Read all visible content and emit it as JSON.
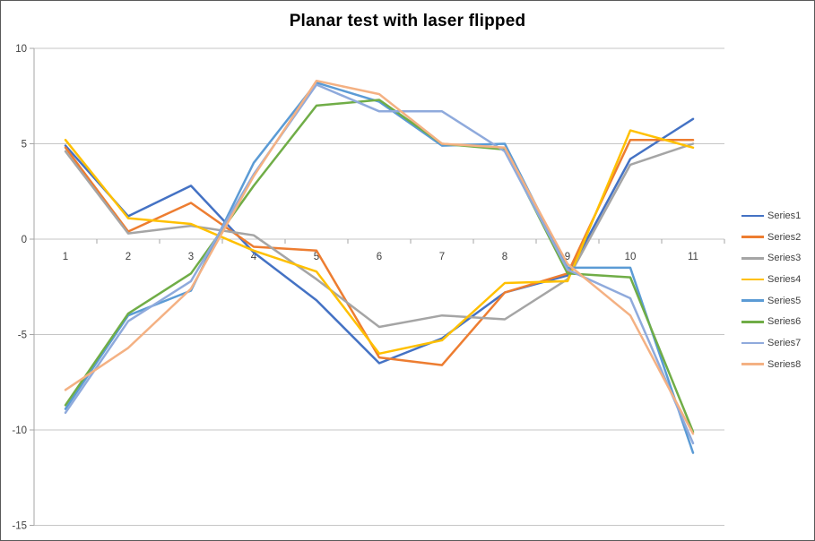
{
  "chart_data": {
    "type": "line",
    "title": "Planar test with laser flipped",
    "categories": [
      "1",
      "2",
      "3",
      "4",
      "5",
      "6",
      "7",
      "8",
      "9",
      "10",
      "11"
    ],
    "series": [
      {
        "name": "Series1",
        "color": "#4472C4",
        "values": [
          4.9,
          1.2,
          2.8,
          -0.7,
          -3.2,
          -6.5,
          -5.2,
          -2.8,
          -1.9,
          4.2,
          6.3
        ]
      },
      {
        "name": "Series2",
        "color": "#ED7D31",
        "values": [
          4.8,
          0.4,
          1.9,
          -0.4,
          -0.6,
          -6.2,
          -6.6,
          -2.8,
          -1.8,
          5.2,
          5.2
        ]
      },
      {
        "name": "Series3",
        "color": "#A5A5A5",
        "values": [
          4.6,
          0.3,
          0.7,
          0.2,
          -2.1,
          -4.6,
          -4.0,
          -4.2,
          -2.1,
          3.9,
          5.0
        ]
      },
      {
        "name": "Series4",
        "color": "#FFC000",
        "values": [
          5.2,
          1.1,
          0.8,
          -0.6,
          -1.7,
          -6.0,
          -5.3,
          -2.3,
          -2.2,
          5.7,
          4.8
        ]
      },
      {
        "name": "Series5",
        "color": "#5B9BD5",
        "values": [
          -8.9,
          -4.0,
          -2.7,
          4.0,
          8.2,
          7.2,
          4.9,
          5.0,
          -1.5,
          -1.5,
          -11.2
        ]
      },
      {
        "name": "Series6",
        "color": "#70AD47",
        "values": [
          -8.7,
          -3.9,
          -1.8,
          2.8,
          7.0,
          7.3,
          5.0,
          4.7,
          -1.8,
          -2.0,
          -10.1
        ]
      },
      {
        "name": "Series7",
        "color": "#8FAADC",
        "values": [
          -9.1,
          -4.3,
          -2.2,
          3.4,
          8.1,
          6.7,
          6.7,
          4.6,
          -1.6,
          -3.1,
          -10.7
        ]
      },
      {
        "name": "Series8",
        "color": "#F4B183",
        "values": [
          -7.9,
          -5.7,
          -2.6,
          3.3,
          8.3,
          7.6,
          5.0,
          4.8,
          -1.3,
          -4.0,
          -10.2
        ]
      }
    ],
    "y_axis": {
      "ticks": [
        10,
        5,
        0,
        -5,
        -10,
        -15
      ],
      "min": -15,
      "max": 10
    },
    "x_axis": {
      "labels": [
        "1",
        "2",
        "3",
        "4",
        "5",
        "6",
        "7",
        "8",
        "9",
        "10",
        "11"
      ]
    },
    "legend": {
      "position": "right",
      "entries": [
        "Series1",
        "Series2",
        "Series3",
        "Series4",
        "Series5",
        "Series6",
        "Series7",
        "Series8"
      ]
    },
    "grid": true,
    "colors": {
      "background": "#FFFFFF",
      "gridline": "#C6C6C6",
      "axis_line": "#A6A6A6",
      "tick_text": "#404040",
      "title_text": "#000000",
      "frame_border": "#595959"
    }
  }
}
